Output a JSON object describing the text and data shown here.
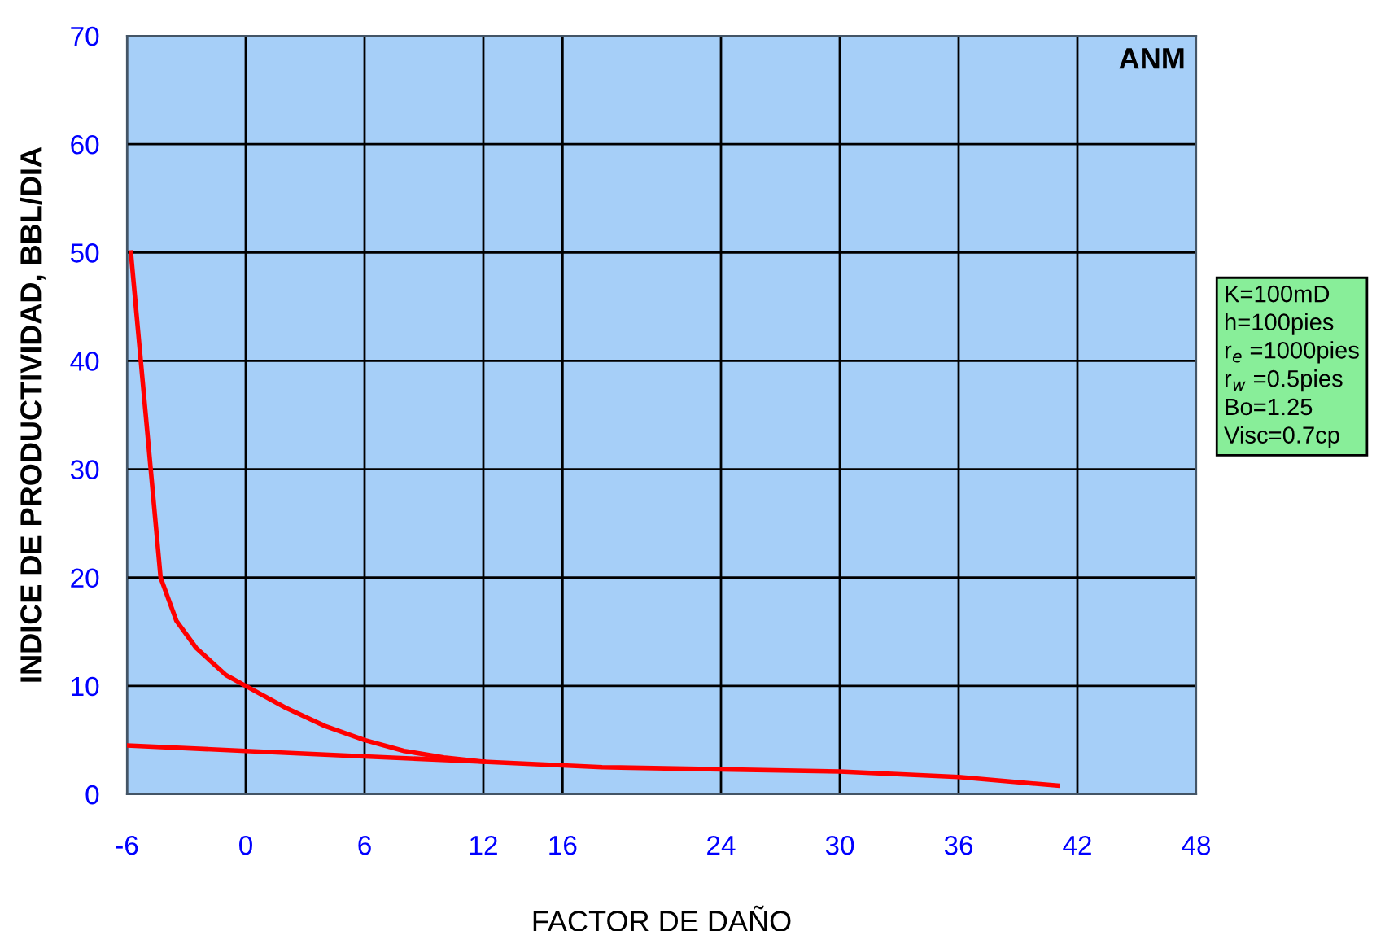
{
  "chart_data": {
    "type": "line",
    "xlabel": "FACTOR DE DAÑO",
    "ylabel": "INDICE DE PRODUCTIVIDAD, BBL/DIA",
    "xlim": [
      -6,
      48
    ],
    "xticks": [
      -6,
      0,
      6,
      12,
      16,
      24,
      30,
      36,
      42,
      48
    ],
    "ylim": [
      0,
      70
    ],
    "yticks": [
      0,
      10,
      20,
      30,
      40,
      50,
      60,
      70
    ],
    "grid": true,
    "marker": "none",
    "line_style": "solid",
    "series": [
      {
        "color": "#ff0000",
        "x": [
          -5.8,
          -5.3,
          -4.8,
          -4.3,
          -3.5,
          -2.5,
          -1,
          0,
          2,
          4,
          6,
          8,
          10,
          12
        ],
        "values": [
          50,
          40,
          30,
          20,
          16,
          13.5,
          11,
          10,
          8,
          6.3,
          5,
          4,
          3.4,
          3
        ]
      },
      {
        "color": "#ff0000",
        "x": [
          -6,
          0,
          6,
          12,
          18,
          24,
          30,
          36,
          41
        ],
        "values": [
          4.5,
          4,
          3.5,
          3,
          2.5,
          2.3,
          2.1,
          1.6,
          0.8
        ]
      }
    ],
    "annotations": [
      "ANM",
      "K=100mD\nh=100pies\nr$_{e}$ =1000pies\nr$_{w}$ =0.5pies\nBo=1.25\nVisc=0.7cp"
    ]
  }
}
